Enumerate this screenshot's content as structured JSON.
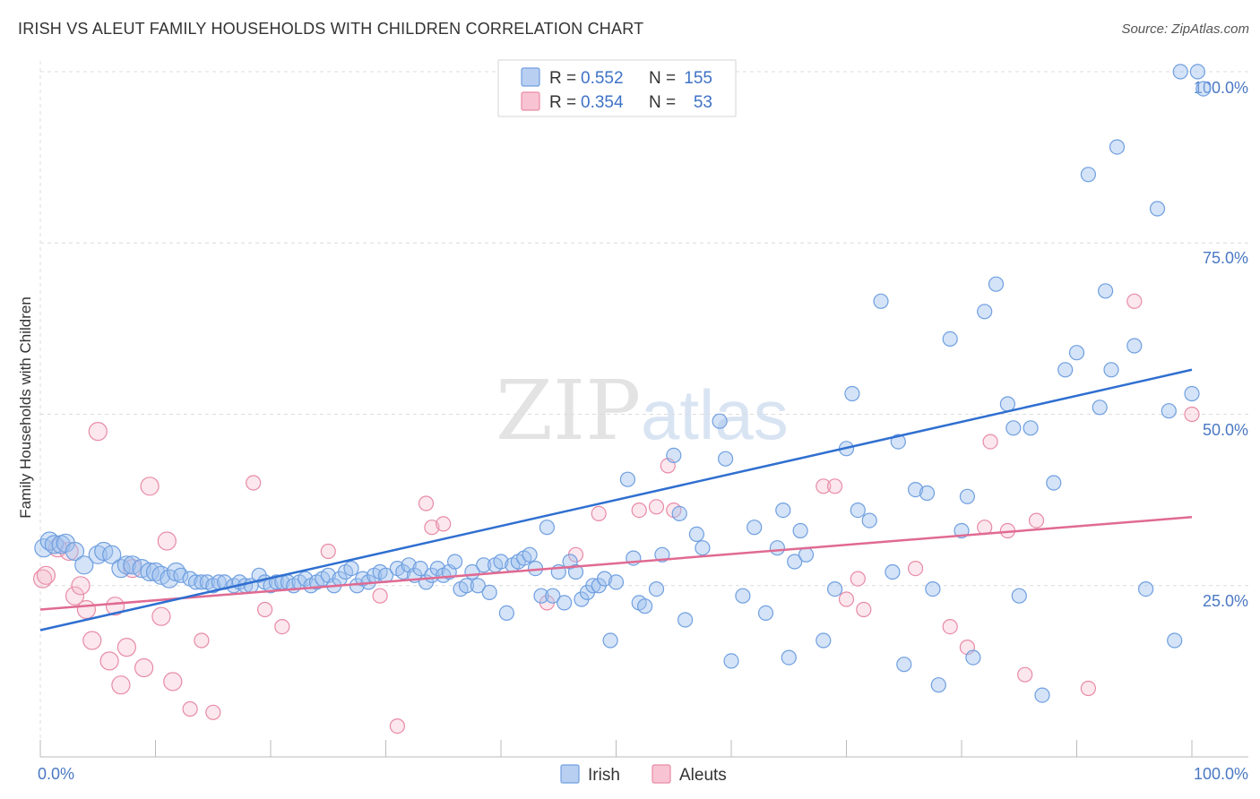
{
  "title": "IRISH VS ALEUT FAMILY HOUSEHOLDS WITH CHILDREN CORRELATION CHART",
  "source": "Source: ZipAtlas.com",
  "watermark": {
    "zip": "ZIP",
    "atlas": "atlas"
  },
  "colors": {
    "irish": "#6f9fe0",
    "irish_fill": "rgba(160,192,238,0.45)",
    "irish_line": "#2f6fd0",
    "aleuts": "#e88aa6",
    "aleuts_fill": "rgba(244,186,204,0.35)",
    "aleuts_line": "#e06a92",
    "axis_label": "#4a78c4",
    "grid": "#dcdcdc"
  },
  "legend": {
    "r_label": "R =",
    "n_label": "N =",
    "rows": [
      {
        "series": "Irish",
        "r": "0.552",
        "n": "155"
      },
      {
        "series": "Aleuts",
        "r": "0.354",
        "n": "53"
      }
    ]
  },
  "bottom_legend": [
    "Irish",
    "Aleuts"
  ],
  "chart_data": {
    "type": "scatter",
    "xlabel": "",
    "ylabel": "Family Households with Children",
    "x_tick_labels": [
      "0.0%",
      "100.0%"
    ],
    "y_tick_labels": [
      "25.0%",
      "50.0%",
      "75.0%",
      "100.0%"
    ],
    "xlim": [
      0,
      100
    ],
    "ylim": [
      0,
      100
    ],
    "grid": "horizontal dashed",
    "legend_position": "top-center",
    "series": [
      {
        "name": "Irish",
        "trend": {
          "x": [
            0,
            100
          ],
          "y": [
            18.5,
            56.5
          ]
        },
        "points": [
          [
            0.3,
            30.5
          ],
          [
            0.8,
            31.5
          ],
          [
            1.2,
            31
          ],
          [
            1.8,
            31
          ],
          [
            2.2,
            31.2
          ],
          [
            3,
            30
          ],
          [
            3.8,
            28
          ],
          [
            5,
            29.5
          ],
          [
            5.5,
            30
          ],
          [
            6.2,
            29.5
          ],
          [
            7,
            27.5
          ],
          [
            7.5,
            28
          ],
          [
            8,
            28
          ],
          [
            8.8,
            27.5
          ],
          [
            9.5,
            27
          ],
          [
            10,
            27
          ],
          [
            10.5,
            26.5
          ],
          [
            11.2,
            26
          ],
          [
            11.8,
            27
          ],
          [
            12.2,
            26.5
          ],
          [
            13,
            26
          ],
          [
            13.5,
            25.5
          ],
          [
            14,
            25.5
          ],
          [
            14.5,
            25.5
          ],
          [
            15,
            25
          ],
          [
            15.5,
            25.5
          ],
          [
            16,
            25.5
          ],
          [
            16.8,
            25
          ],
          [
            17.3,
            25.5
          ],
          [
            17.8,
            25
          ],
          [
            18.3,
            25
          ],
          [
            19,
            26.5
          ],
          [
            19.5,
            25.5
          ],
          [
            20,
            25
          ],
          [
            20.5,
            25.5
          ],
          [
            21,
            25.5
          ],
          [
            21.5,
            25.5
          ],
          [
            22,
            25
          ],
          [
            22.5,
            25.5
          ],
          [
            23,
            26
          ],
          [
            23.5,
            25
          ],
          [
            24,
            25.5
          ],
          [
            24.5,
            26
          ],
          [
            25,
            26.5
          ],
          [
            25.5,
            25
          ],
          [
            26,
            26
          ],
          [
            26.5,
            27
          ],
          [
            27,
            27.5
          ],
          [
            27.5,
            25
          ],
          [
            28,
            26
          ],
          [
            28.5,
            25.5
          ],
          [
            29,
            26.5
          ],
          [
            29.5,
            27
          ],
          [
            30,
            26.5
          ],
          [
            31,
            27.5
          ],
          [
            31.5,
            27
          ],
          [
            32,
            28
          ],
          [
            32.5,
            26.5
          ],
          [
            33,
            27.5
          ],
          [
            33.5,
            25.5
          ],
          [
            34,
            26.5
          ],
          [
            34.5,
            27.5
          ],
          [
            35,
            26.5
          ],
          [
            35.5,
            27
          ],
          [
            36,
            28.5
          ],
          [
            36.5,
            24.5
          ],
          [
            37,
            25
          ],
          [
            37.5,
            27
          ],
          [
            38,
            25
          ],
          [
            38.5,
            28
          ],
          [
            39,
            24
          ],
          [
            39.5,
            28
          ],
          [
            40,
            28.5
          ],
          [
            40.5,
            21
          ],
          [
            41,
            28
          ],
          [
            41.5,
            28.5
          ],
          [
            42,
            29
          ],
          [
            42.5,
            29.5
          ],
          [
            43,
            27.5
          ],
          [
            43.5,
            23.5
          ],
          [
            44,
            33.5
          ],
          [
            44.5,
            23.5
          ],
          [
            45,
            27
          ],
          [
            45.5,
            22.5
          ],
          [
            46,
            28.5
          ],
          [
            46.5,
            27
          ],
          [
            47,
            23
          ],
          [
            47.5,
            24
          ],
          [
            48,
            25
          ],
          [
            48.5,
            25
          ],
          [
            49,
            26
          ],
          [
            49.5,
            17
          ],
          [
            50,
            25.5
          ],
          [
            51,
            40.5
          ],
          [
            51.5,
            29
          ],
          [
            52,
            22.5
          ],
          [
            52.5,
            22
          ],
          [
            53.5,
            24.5
          ],
          [
            54,
            29.5
          ],
          [
            55,
            44
          ],
          [
            55.5,
            35.5
          ],
          [
            56,
            20
          ],
          [
            57,
            32.5
          ],
          [
            57.5,
            30.5
          ],
          [
            59,
            49
          ],
          [
            59.5,
            43.5
          ],
          [
            60,
            14
          ],
          [
            61,
            23.5
          ],
          [
            62,
            33.5
          ],
          [
            63,
            21
          ],
          [
            64,
            30.5
          ],
          [
            64.5,
            36
          ],
          [
            65,
            14.5
          ],
          [
            65.5,
            28.5
          ],
          [
            66,
            33
          ],
          [
            66.5,
            29.5
          ],
          [
            68,
            17
          ],
          [
            69,
            24.5
          ],
          [
            70,
            45
          ],
          [
            70.5,
            53
          ],
          [
            71,
            36
          ],
          [
            72,
            34.5
          ],
          [
            73,
            66.5
          ],
          [
            74,
            27
          ],
          [
            74.5,
            46
          ],
          [
            75,
            13.5
          ],
          [
            76,
            39
          ],
          [
            77,
            38.5
          ],
          [
            77.5,
            24.5
          ],
          [
            78,
            10.5
          ],
          [
            79,
            61
          ],
          [
            80,
            33
          ],
          [
            80.5,
            38
          ],
          [
            81,
            14.5
          ],
          [
            82,
            65
          ],
          [
            83,
            69
          ],
          [
            84,
            51.5
          ],
          [
            84.5,
            48
          ],
          [
            85,
            23.5
          ],
          [
            86,
            48
          ],
          [
            87,
            9
          ],
          [
            88,
            40
          ],
          [
            89,
            56.5
          ],
          [
            90,
            59
          ],
          [
            91,
            85
          ],
          [
            92,
            51
          ],
          [
            92.5,
            68
          ],
          [
            93,
            56.5
          ],
          [
            93.5,
            89
          ],
          [
            95,
            60
          ],
          [
            96,
            24.5
          ],
          [
            97,
            80
          ],
          [
            98,
            50.5
          ],
          [
            98.5,
            17
          ],
          [
            99,
            100
          ],
          [
            100,
            53
          ],
          [
            100.5,
            100
          ],
          [
            101,
            97.5
          ]
        ]
      },
      {
        "name": "Aleuts",
        "trend": {
          "x": [
            0,
            100
          ],
          "y": [
            21.5,
            35
          ]
        },
        "points": [
          [
            0.2,
            26
          ],
          [
            0.5,
            26.5
          ],
          [
            1.5,
            30.5
          ],
          [
            2.5,
            30
          ],
          [
            3,
            23.5
          ],
          [
            3.5,
            25
          ],
          [
            4,
            21.5
          ],
          [
            4.5,
            17
          ],
          [
            5,
            47.5
          ],
          [
            6,
            14
          ],
          [
            6.5,
            22
          ],
          [
            7,
            10.5
          ],
          [
            7.5,
            16
          ],
          [
            8,
            27.5
          ],
          [
            9,
            13
          ],
          [
            9.5,
            39.5
          ],
          [
            10.5,
            20.5
          ],
          [
            11,
            31.5
          ],
          [
            11.5,
            11
          ],
          [
            13,
            7
          ],
          [
            14,
            17
          ],
          [
            15,
            6.5
          ],
          [
            18.5,
            40
          ],
          [
            19.5,
            21.5
          ],
          [
            21,
            19
          ],
          [
            25,
            30
          ],
          [
            29.5,
            23.5
          ],
          [
            31,
            4.5
          ],
          [
            33.5,
            37
          ],
          [
            34,
            33.5
          ],
          [
            35,
            34
          ],
          [
            44,
            22.5
          ],
          [
            46.5,
            29.5
          ],
          [
            48.5,
            35.5
          ],
          [
            52,
            36
          ],
          [
            53.5,
            36.5
          ],
          [
            54.5,
            42.5
          ],
          [
            55,
            36
          ],
          [
            68,
            39.5
          ],
          [
            69,
            39.5
          ],
          [
            70,
            23
          ],
          [
            71,
            26
          ],
          [
            71.5,
            21.5
          ],
          [
            76,
            27.5
          ],
          [
            79,
            19
          ],
          [
            80.5,
            16
          ],
          [
            82,
            33.5
          ],
          [
            82.5,
            46
          ],
          [
            84,
            33
          ],
          [
            85.5,
            12
          ],
          [
            86.5,
            34.5
          ],
          [
            91,
            10
          ],
          [
            95,
            66.5
          ],
          [
            100,
            50
          ]
        ]
      }
    ]
  }
}
